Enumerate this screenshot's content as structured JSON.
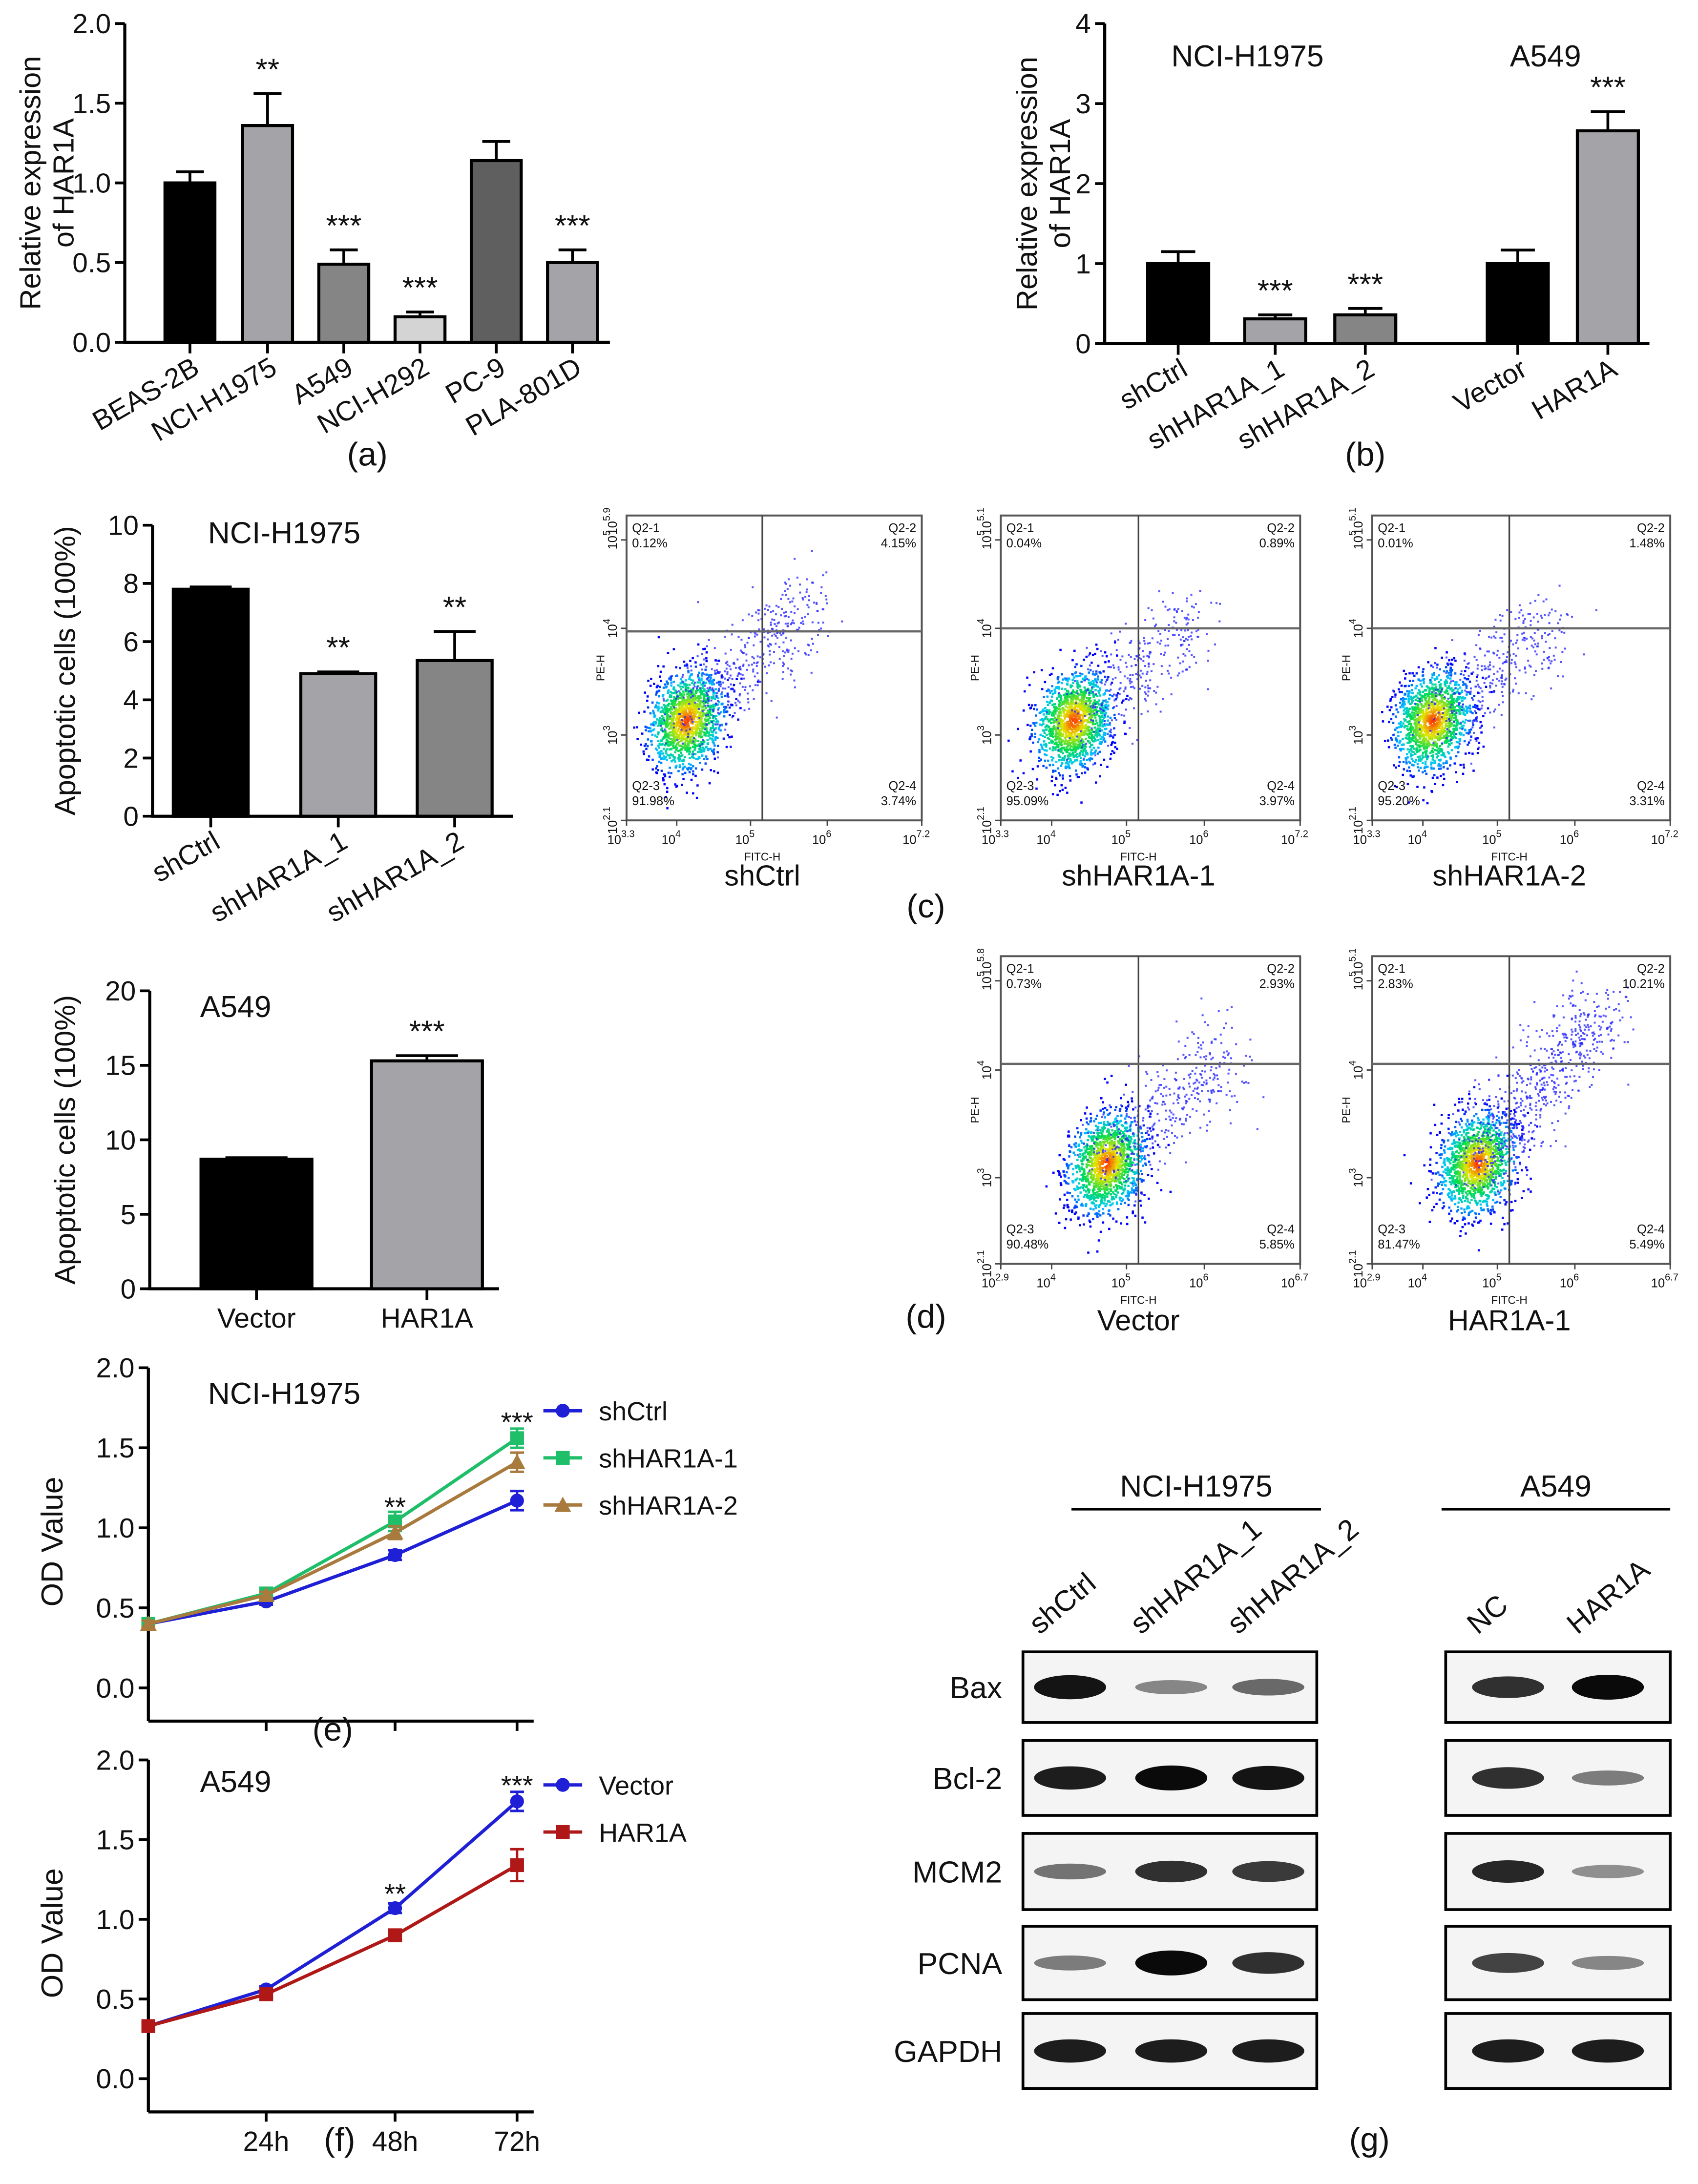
{
  "colors": {
    "black": "#000000",
    "lightgray": "#a3a3a8",
    "midgray": "#858585",
    "palegray": "#d4d4d4",
    "darkgray": "#5f5f5f",
    "blue": "#1f1fd6",
    "green": "#1fbf6a",
    "brown": "#a87a3e",
    "red": "#b01818"
  },
  "chart_data": [
    {
      "id": "a",
      "panel_label": "(a)",
      "type": "bar",
      "ylabel": [
        "Relative expression",
        "of HAR1A"
      ],
      "ylim": [
        0,
        2.0
      ],
      "yticks": [
        "0.0",
        "0.5",
        "1.0",
        "1.5",
        "2.0"
      ],
      "ytick_values": [
        0,
        0.5,
        1.0,
        1.5,
        2.0
      ],
      "categories": [
        "BEAS-2B",
        "NCI-H1975",
        "A549",
        "NCI-H292",
        "PC-9",
        "PLA-801D"
      ],
      "values": [
        1.0,
        1.36,
        0.49,
        0.16,
        1.14,
        0.5
      ],
      "errors": [
        0.07,
        0.2,
        0.09,
        0.03,
        0.12,
        0.08
      ],
      "significance": [
        "",
        "**",
        "***",
        "***",
        "",
        "***"
      ],
      "fills": [
        "black",
        "lightgray",
        "midgray",
        "palegray",
        "darkgray",
        "lightgray"
      ]
    },
    {
      "id": "b",
      "panel_label": "(b)",
      "type": "bar",
      "ylabel": [
        "Relative expression",
        "of HAR1A"
      ],
      "ylim": [
        0,
        4
      ],
      "yticks": [
        "0",
        "1",
        "2",
        "3",
        "4"
      ],
      "ytick_values": [
        0,
        1,
        2,
        3,
        4
      ],
      "group_titles": [
        "NCI-H1975",
        "A549"
      ],
      "categories": [
        "shCtrl",
        "shHAR1A_1",
        "shHAR1A_2",
        "Vector",
        "HAR1A"
      ],
      "values": [
        1.0,
        0.31,
        0.36,
        1.0,
        2.66
      ],
      "errors": [
        0.15,
        0.05,
        0.08,
        0.17,
        0.24
      ],
      "significance": [
        "",
        "***",
        "***",
        "",
        "***"
      ],
      "fills": [
        "black",
        "lightgray",
        "midgray",
        "black",
        "lightgray"
      ]
    },
    {
      "id": "c_bar",
      "type": "bar",
      "title": "NCI-H1975",
      "ylabel": [
        "Apoptotic cells (100%)"
      ],
      "ylim": [
        0,
        10
      ],
      "yticks": [
        "0",
        "2",
        "4",
        "6",
        "8",
        "10"
      ],
      "ytick_values": [
        0,
        2,
        4,
        6,
        8,
        10
      ],
      "categories": [
        "shCtrl",
        "shHAR1A_1",
        "shHAR1A_2"
      ],
      "values": [
        7.8,
        4.9,
        5.35
      ],
      "errors": [
        0.08,
        0.06,
        1.0
      ],
      "significance": [
        "",
        "**",
        "**"
      ],
      "fills": [
        "black",
        "lightgray",
        "midgray"
      ]
    },
    {
      "id": "d_bar",
      "type": "bar",
      "title": "A549",
      "ylabel": [
        "Apoptotic cells (100%)"
      ],
      "ylim": [
        0,
        20
      ],
      "yticks": [
        "0",
        "5",
        "10",
        "15",
        "20"
      ],
      "ytick_values": [
        0,
        5,
        10,
        15,
        20
      ],
      "categories": [
        "Vector",
        "HAR1A"
      ],
      "values": [
        8.7,
        15.3
      ],
      "errors": [
        0.1,
        0.35
      ],
      "significance": [
        "",
        "***"
      ],
      "fills": [
        "black",
        "lightgray"
      ]
    },
    {
      "id": "c_flow",
      "panel_label": "(c)",
      "type": "scatter",
      "xlabel": "FITC-H",
      "ylabel": "PE-H",
      "plots": [
        {
          "name": "shCtrl",
          "y_top": "5.9",
          "x_ticks": [
            "3.3",
            "4",
            "5",
            "6",
            "7.2"
          ],
          "y_ticks": [
            "2.1",
            "3",
            "4",
            "5"
          ],
          "quadrants": {
            "Q2-1": "0.12%",
            "Q2-2": "4.15%",
            "Q2-3": "91.98%",
            "Q2-4": "3.74%"
          }
        },
        {
          "name": "shHAR1A-1",
          "y_top": "5.1",
          "x_ticks": [
            "3.3",
            "4",
            "5",
            "6",
            "7.2"
          ],
          "y_ticks": [
            "2.1",
            "3",
            "4",
            "5"
          ],
          "quadrants": {
            "Q2-1": "0.04%",
            "Q2-2": "0.89%",
            "Q2-3": "95.09%",
            "Q2-4": "3.97%"
          }
        },
        {
          "name": "shHAR1A-2",
          "y_top": "5.1",
          "x_ticks": [
            "3.3",
            "4",
            "5",
            "6",
            "7.2"
          ],
          "y_ticks": [
            "2.1",
            "3",
            "4",
            "5"
          ],
          "quadrants": {
            "Q2-1": "0.01%",
            "Q2-2": "1.48%",
            "Q2-3": "95.20%",
            "Q2-4": "3.31%"
          }
        }
      ]
    },
    {
      "id": "d_flow",
      "panel_label": "(d)",
      "type": "scatter",
      "xlabel": "FITC-H",
      "ylabel": "PE-H",
      "plots": [
        {
          "name": "Vector",
          "y_top": "5.8",
          "x_ticks": [
            "2.9",
            "4",
            "5",
            "6",
            "6.7"
          ],
          "y_ticks": [
            "2.1",
            "3",
            "4",
            "5"
          ],
          "quadrants": {
            "Q2-1": "0.73%",
            "Q2-2": "2.93%",
            "Q2-3": "90.48%",
            "Q2-4": "5.85%"
          }
        },
        {
          "name": "HAR1A-1",
          "y_top": "5.1",
          "x_ticks": [
            "2.9",
            "4",
            "5",
            "6",
            "6.7"
          ],
          "y_ticks": [
            "2.1",
            "3",
            "4",
            "5"
          ],
          "quadrants": {
            "Q2-1": "2.83%",
            "Q2-2": "10.21%",
            "Q2-3": "81.47%",
            "Q2-4": "5.49%"
          }
        }
      ]
    },
    {
      "id": "e",
      "panel_label": "(e)",
      "type": "line",
      "title": "NCI-H1975",
      "ylabel": "OD Value",
      "ylim": [
        0,
        2.0
      ],
      "yticks": [
        "0.0",
        "0.5",
        "1.0",
        "1.5",
        "2.0"
      ],
      "ytick_values": [
        0,
        0.5,
        1.0,
        1.5,
        2.0
      ],
      "x": [
        0,
        24,
        48,
        72
      ],
      "xtick_labels": [],
      "series": [
        {
          "name": "shCtrl",
          "color": "blue",
          "marker": "circle",
          "values": [
            0.4,
            0.54,
            0.83,
            1.17
          ],
          "errors": [
            0.02,
            0.02,
            0.03,
            0.06
          ]
        },
        {
          "name": "shHAR1A-1",
          "color": "green",
          "marker": "square",
          "values": [
            0.4,
            0.59,
            1.04,
            1.56
          ],
          "errors": [
            0.02,
            0.02,
            0.06,
            0.06
          ]
        },
        {
          "name": "shHAR1A-2",
          "color": "brown",
          "marker": "triangle",
          "values": [
            0.4,
            0.58,
            0.97,
            1.41
          ],
          "errors": [
            0.02,
            0.02,
            0.04,
            0.06
          ]
        }
      ],
      "annotations": [
        {
          "x": 48,
          "text": "**",
          "y": 1.14
        },
        {
          "x": 72,
          "text": "***",
          "y": 1.67
        }
      ]
    },
    {
      "id": "f",
      "panel_label": "(f)",
      "type": "line",
      "title": "A549",
      "ylabel": "OD Value",
      "ylim": [
        0,
        2.0
      ],
      "yticks": [
        "0.0",
        "0.5",
        "1.0",
        "1.5",
        "2.0"
      ],
      "ytick_values": [
        0,
        0.5,
        1.0,
        1.5,
        2.0
      ],
      "x": [
        0,
        24,
        48,
        72
      ],
      "xtick_labels": [
        "",
        "24h",
        "48h",
        "72h"
      ],
      "series": [
        {
          "name": "Vector",
          "color": "blue",
          "marker": "circle",
          "values": [
            0.33,
            0.56,
            1.07,
            1.74
          ],
          "errors": [
            0.02,
            0.02,
            0.03,
            0.06
          ]
        },
        {
          "name": "HAR1A",
          "color": "red",
          "marker": "square",
          "values": [
            0.33,
            0.53,
            0.9,
            1.34
          ],
          "errors": [
            0.02,
            0.02,
            0.03,
            0.1
          ]
        }
      ],
      "annotations": [
        {
          "x": 48,
          "text": "**",
          "y": 1.17
        },
        {
          "x": 72,
          "text": "***",
          "y": 1.85
        }
      ]
    }
  ],
  "western_blot": {
    "panel_label": "(g)",
    "groups": [
      {
        "name": "NCI-H1975",
        "lanes": [
          "shCtrl",
          "shHAR1A_1",
          "shHAR1A_2"
        ]
      },
      {
        "name": "A549",
        "lanes": [
          "NC",
          "HAR1A"
        ]
      }
    ],
    "proteins": [
      "Bax",
      "Bcl-2",
      "MCM2",
      "PCNA",
      "GAPDH"
    ],
    "band_intensity": [
      [
        [
          0.95,
          0.35,
          0.5
        ],
        [
          0.8,
          1.0
        ]
      ],
      [
        [
          0.9,
          1.0,
          0.95
        ],
        [
          0.8,
          0.4
        ]
      ],
      [
        [
          0.45,
          0.8,
          0.75
        ],
        [
          0.85,
          0.3
        ]
      ],
      [
        [
          0.4,
          1.0,
          0.8
        ],
        [
          0.7,
          0.35
        ]
      ],
      [
        [
          0.9,
          0.9,
          0.9
        ],
        [
          0.9,
          0.9
        ]
      ]
    ]
  }
}
